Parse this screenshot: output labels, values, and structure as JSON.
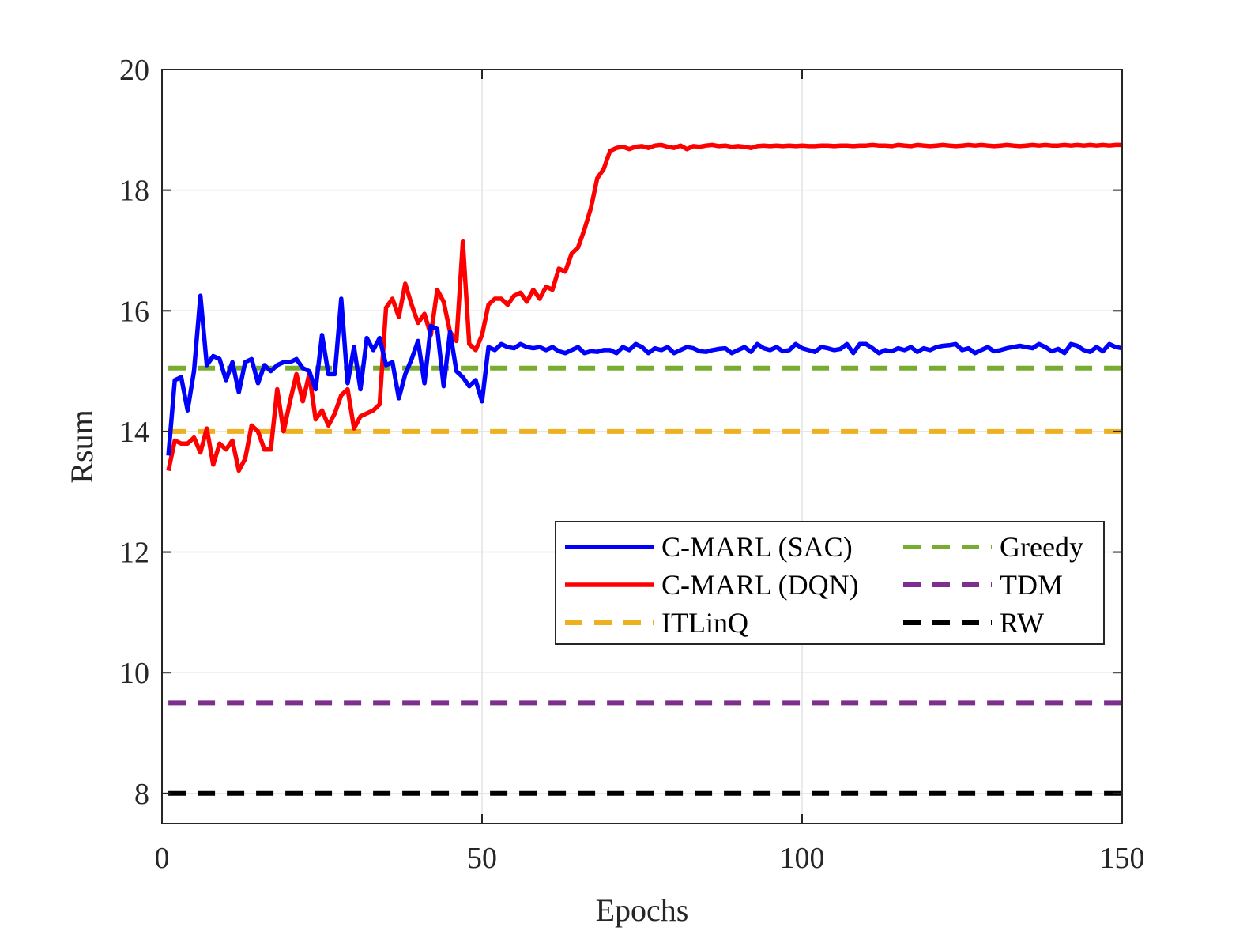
{
  "chart_data": {
    "type": "line",
    "title": "",
    "xlabel": "Epochs",
    "ylabel": "Rsum",
    "xlim": [
      0,
      150
    ],
    "ylim": [
      7.5,
      20
    ],
    "xticks": [
      0,
      50,
      100,
      150
    ],
    "yticks": [
      8,
      10,
      12,
      14,
      16,
      18,
      20
    ],
    "grid": true,
    "legend_position": "center-right",
    "series": [
      {
        "name": "C-MARL (SAC)",
        "color": "#0000ff",
        "style": "solid",
        "x": [
          1,
          2,
          3,
          4,
          5,
          6,
          7,
          8,
          9,
          10,
          11,
          12,
          13,
          14,
          15,
          16,
          17,
          18,
          19,
          20,
          21,
          22,
          23,
          24,
          25,
          26,
          27,
          28,
          29,
          30,
          31,
          32,
          33,
          34,
          35,
          36,
          37,
          38,
          39,
          40,
          41,
          42,
          43,
          44,
          45,
          46,
          47,
          48,
          49,
          50,
          51,
          52,
          53,
          54,
          55,
          56,
          57,
          58,
          59,
          60,
          61,
          62,
          63,
          64,
          65,
          66,
          67,
          68,
          69,
          70,
          71,
          72,
          73,
          74,
          75,
          76,
          77,
          78,
          79,
          80,
          81,
          82,
          83,
          84,
          85,
          86,
          87,
          88,
          89,
          90,
          91,
          92,
          93,
          94,
          95,
          96,
          97,
          98,
          99,
          100,
          101,
          102,
          103,
          104,
          105,
          106,
          107,
          108,
          109,
          110,
          111,
          112,
          113,
          114,
          115,
          116,
          117,
          118,
          119,
          120,
          121,
          122,
          123,
          124,
          125,
          126,
          127,
          128,
          129,
          130,
          131,
          132,
          133,
          134,
          135,
          136,
          137,
          138,
          139,
          140,
          141,
          142,
          143,
          144,
          145,
          146,
          147,
          148,
          149,
          150
        ],
        "y": [
          13.6,
          14.85,
          14.9,
          14.35,
          15.0,
          16.25,
          15.1,
          15.25,
          15.2,
          14.85,
          15.15,
          14.65,
          15.15,
          15.2,
          14.8,
          15.1,
          15.0,
          15.1,
          15.15,
          15.15,
          15.2,
          15.05,
          15.0,
          14.7,
          15.6,
          14.95,
          14.95,
          16.2,
          14.8,
          15.4,
          14.7,
          15.55,
          15.35,
          15.55,
          15.1,
          15.15,
          14.55,
          14.95,
          15.2,
          15.5,
          14.8,
          15.75,
          15.7,
          14.75,
          15.65,
          15.0,
          14.9,
          14.75,
          14.85,
          14.5,
          15.4,
          15.35,
          15.45,
          15.4,
          15.38,
          15.45,
          15.4,
          15.38,
          15.4,
          15.35,
          15.4,
          15.33,
          15.3,
          15.35,
          15.4,
          15.3,
          15.33,
          15.32,
          15.35,
          15.35,
          15.3,
          15.4,
          15.35,
          15.45,
          15.4,
          15.3,
          15.38,
          15.35,
          15.4,
          15.3,
          15.35,
          15.4,
          15.38,
          15.33,
          15.32,
          15.35,
          15.37,
          15.38,
          15.3,
          15.35,
          15.4,
          15.32,
          15.45,
          15.38,
          15.35,
          15.4,
          15.33,
          15.35,
          15.45,
          15.38,
          15.35,
          15.32,
          15.4,
          15.38,
          15.35,
          15.37,
          15.45,
          15.3,
          15.45,
          15.45,
          15.38,
          15.3,
          15.35,
          15.33,
          15.38,
          15.35,
          15.4,
          15.32,
          15.38,
          15.35,
          15.4,
          15.42,
          15.43,
          15.45,
          15.35,
          15.38,
          15.3,
          15.35,
          15.4,
          15.33,
          15.35,
          15.38,
          15.4,
          15.42,
          15.4,
          15.38,
          15.45,
          15.4,
          15.33,
          15.37,
          15.3,
          15.45,
          15.42,
          15.35,
          15.32,
          15.4,
          15.33,
          15.45,
          15.4,
          15.38
        ]
      },
      {
        "name": "C-MARL (DQN)",
        "color": "#ff0000",
        "style": "solid",
        "x": [
          1,
          2,
          3,
          4,
          5,
          6,
          7,
          8,
          9,
          10,
          11,
          12,
          13,
          14,
          15,
          16,
          17,
          18,
          19,
          20,
          21,
          22,
          23,
          24,
          25,
          26,
          27,
          28,
          29,
          30,
          31,
          32,
          33,
          34,
          35,
          36,
          37,
          38,
          39,
          40,
          41,
          42,
          43,
          44,
          45,
          46,
          47,
          48,
          49,
          50,
          51,
          52,
          53,
          54,
          55,
          56,
          57,
          58,
          59,
          60,
          61,
          62,
          63,
          64,
          65,
          66,
          67,
          68,
          69,
          70,
          71,
          72,
          73,
          74,
          75,
          76,
          77,
          78,
          79,
          80,
          81,
          82,
          83,
          84,
          85,
          86,
          87,
          88,
          89,
          90,
          91,
          92,
          93,
          94,
          95,
          96,
          97,
          98,
          99,
          100,
          101,
          102,
          103,
          104,
          105,
          106,
          107,
          108,
          109,
          110,
          111,
          112,
          113,
          114,
          115,
          116,
          117,
          118,
          119,
          120,
          121,
          122,
          123,
          124,
          125,
          126,
          127,
          128,
          129,
          130,
          131,
          132,
          133,
          134,
          135,
          136,
          137,
          138,
          139,
          140,
          141,
          142,
          143,
          144,
          145,
          146,
          147,
          148,
          149,
          150
        ],
        "y": [
          13.35,
          13.85,
          13.8,
          13.8,
          13.9,
          13.65,
          14.05,
          13.45,
          13.8,
          13.7,
          13.85,
          13.35,
          13.55,
          14.1,
          14.0,
          13.7,
          13.7,
          14.7,
          14.0,
          14.5,
          14.95,
          14.5,
          14.95,
          14.2,
          14.35,
          14.1,
          14.3,
          14.6,
          14.7,
          14.05,
          14.25,
          14.3,
          14.35,
          14.45,
          16.05,
          16.2,
          15.9,
          16.45,
          16.1,
          15.8,
          15.95,
          15.6,
          16.35,
          16.15,
          15.65,
          15.5,
          17.15,
          15.45,
          15.35,
          15.6,
          16.1,
          16.2,
          16.2,
          16.1,
          16.25,
          16.3,
          16.15,
          16.35,
          16.2,
          16.4,
          16.35,
          16.7,
          16.65,
          16.95,
          17.05,
          17.35,
          17.7,
          18.2,
          18.35,
          18.65,
          18.7,
          18.72,
          18.68,
          18.72,
          18.73,
          18.7,
          18.74,
          18.75,
          18.72,
          18.7,
          18.74,
          18.68,
          18.73,
          18.72,
          18.74,
          18.75,
          18.73,
          18.74,
          18.72,
          18.73,
          18.72,
          18.7,
          18.73,
          18.74,
          18.73,
          18.74,
          18.73,
          18.74,
          18.73,
          18.74,
          18.73,
          18.73,
          18.74,
          18.74,
          18.73,
          18.74,
          18.74,
          18.73,
          18.74,
          18.74,
          18.75,
          18.74,
          18.74,
          18.73,
          18.75,
          18.74,
          18.73,
          18.75,
          18.74,
          18.73,
          18.74,
          18.75,
          18.74,
          18.73,
          18.74,
          18.75,
          18.74,
          18.75,
          18.74,
          18.73,
          18.74,
          18.75,
          18.74,
          18.73,
          18.74,
          18.75,
          18.74,
          18.75,
          18.74,
          18.74,
          18.75,
          18.74,
          18.75,
          18.74,
          18.75,
          18.74,
          18.75,
          18.74,
          18.75,
          18.75
        ]
      },
      {
        "name": "ITLinQ",
        "color": "#edb120",
        "style": "dashed",
        "x": [
          1,
          150
        ],
        "y": [
          14.0,
          14.0
        ]
      },
      {
        "name": "Greedy",
        "color": "#77ac30",
        "style": "dashed",
        "x": [
          1,
          150
        ],
        "y": [
          15.05,
          15.05
        ]
      },
      {
        "name": "TDM",
        "color": "#7e2f8e",
        "style": "dashed",
        "x": [
          1,
          150
        ],
        "y": [
          9.5,
          9.5
        ]
      },
      {
        "name": "RW",
        "color": "#000000",
        "style": "dashed",
        "x": [
          1,
          150
        ],
        "y": [
          8.0,
          8.0
        ]
      }
    ]
  }
}
